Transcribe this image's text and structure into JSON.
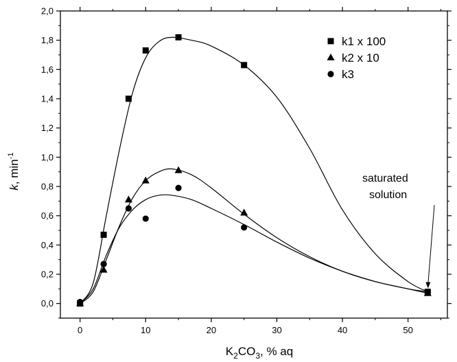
{
  "chart_data": {
    "type": "scatter",
    "title": "",
    "xlabel": {
      "main": "K",
      "sub": "2",
      "main2": "CO",
      "sub2": "3",
      "rest": ", % aq"
    },
    "ylabel": {
      "italic": "k",
      "rest": ", min",
      "sup": "-1"
    },
    "xlim": [
      -3,
      56
    ],
    "ylim": [
      -0.1,
      2.0
    ],
    "xticks": [
      0,
      10,
      20,
      30,
      40,
      50
    ],
    "xtick_labels": [
      "0",
      "10",
      "20",
      "30",
      "40",
      "50"
    ],
    "yticks": [
      0.0,
      0.2,
      0.4,
      0.6,
      0.8,
      1.0,
      1.2,
      1.4,
      1.6,
      1.8,
      2.0
    ],
    "ytick_labels": [
      "0,0",
      "0,2",
      "0,4",
      "0,6",
      "0,8",
      "1,0",
      "1,2",
      "1,4",
      "1,6",
      "1,8",
      "2,0"
    ],
    "grid": false,
    "legend_position": "top-right",
    "series": [
      {
        "name": "k1 x 100",
        "marker": "square",
        "x": [
          0,
          3.6,
          7.4,
          10,
          15,
          25,
          53
        ],
        "y": [
          0.0,
          0.47,
          1.4,
          1.73,
          1.82,
          1.63,
          0.08
        ],
        "fit": [
          [
            0,
            0.0
          ],
          [
            2,
            0.14
          ],
          [
            4,
            0.6
          ],
          [
            6,
            1.05
          ],
          [
            8,
            1.44
          ],
          [
            10,
            1.68
          ],
          [
            12,
            1.79
          ],
          [
            14,
            1.82
          ],
          [
            17,
            1.8
          ],
          [
            20,
            1.76
          ],
          [
            25,
            1.63
          ],
          [
            30,
            1.41
          ],
          [
            35,
            1.06
          ],
          [
            40,
            0.64
          ],
          [
            45,
            0.34
          ],
          [
            50,
            0.15
          ],
          [
            53,
            0.08
          ]
        ]
      },
      {
        "name": "k2 x 10",
        "marker": "triangle",
        "x": [
          0,
          3.6,
          7.4,
          10,
          15,
          25,
          53
        ],
        "y": [
          0.0,
          0.23,
          0.71,
          0.84,
          0.91,
          0.62,
          0.07
        ],
        "fit": [
          [
            0,
            0.0
          ],
          [
            2,
            0.08
          ],
          [
            4,
            0.3
          ],
          [
            6,
            0.53
          ],
          [
            8,
            0.72
          ],
          [
            10,
            0.84
          ],
          [
            12,
            0.9
          ],
          [
            14,
            0.92
          ],
          [
            17,
            0.88
          ],
          [
            20,
            0.79
          ],
          [
            25,
            0.61
          ],
          [
            30,
            0.45
          ],
          [
            35,
            0.32
          ],
          [
            40,
            0.22
          ],
          [
            45,
            0.15
          ],
          [
            50,
            0.1
          ],
          [
            53,
            0.07
          ]
        ]
      },
      {
        "name": "k3",
        "marker": "circle",
        "x": [
          0,
          3.6,
          7.4,
          10,
          15,
          25,
          53
        ],
        "y": [
          0.01,
          0.27,
          0.65,
          0.58,
          0.79,
          0.52,
          0.08
        ],
        "fit": [
          [
            0,
            0.0
          ],
          [
            2,
            0.1
          ],
          [
            4,
            0.33
          ],
          [
            6,
            0.52
          ],
          [
            8,
            0.64
          ],
          [
            10,
            0.71
          ],
          [
            12,
            0.74
          ],
          [
            14,
            0.74
          ],
          [
            17,
            0.71
          ],
          [
            20,
            0.65
          ],
          [
            25,
            0.54
          ],
          [
            30,
            0.42
          ],
          [
            35,
            0.31
          ],
          [
            40,
            0.22
          ],
          [
            45,
            0.15
          ],
          [
            50,
            0.1
          ],
          [
            53,
            0.08
          ]
        ]
      }
    ],
    "annotation": {
      "lines": [
        "saturated",
        "solution"
      ],
      "target": [
        53,
        0.09
      ]
    }
  }
}
